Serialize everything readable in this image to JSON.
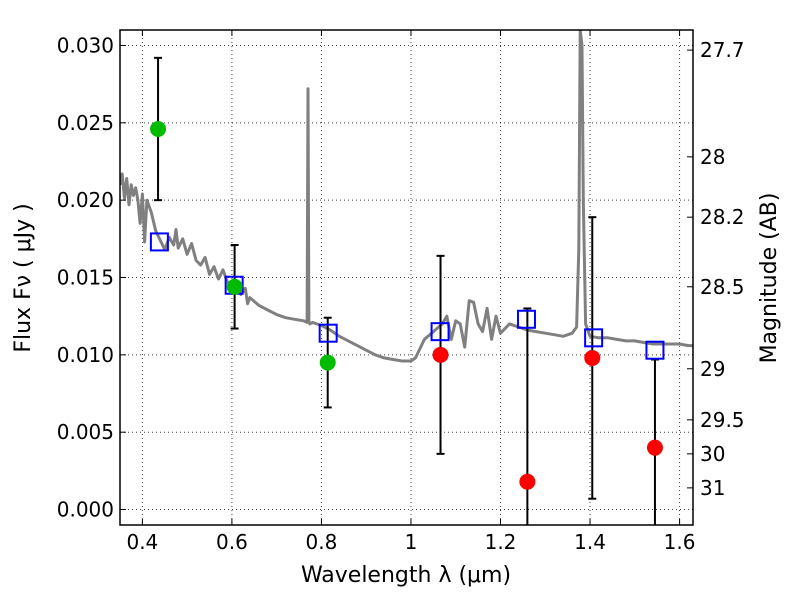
{
  "chart_data": {
    "type": "scatter",
    "xlabel": "Wavelength  λ (μm)",
    "ylabel": "Flux  Fν  ( μJy )",
    "ylabel_right": "Magnitude (AB)",
    "xlim": [
      0.35,
      1.63
    ],
    "ylim": [
      -0.001,
      0.031
    ],
    "grid": true,
    "x_ticks": [
      {
        "value": 0.4,
        "label": "0.4"
      },
      {
        "value": 0.6,
        "label": "0.6"
      },
      {
        "value": 0.8,
        "label": "0.8"
      },
      {
        "value": 1.0,
        "label": "1"
      },
      {
        "value": 1.2,
        "label": "1.2"
      },
      {
        "value": 1.4,
        "label": "1.4"
      },
      {
        "value": 1.6,
        "label": "1.6"
      }
    ],
    "y_ticks": [
      {
        "value": 0.0,
        "label": "0.000"
      },
      {
        "value": 0.005,
        "label": "0.005"
      },
      {
        "value": 0.01,
        "label": "0.010"
      },
      {
        "value": 0.015,
        "label": "0.015"
      },
      {
        "value": 0.02,
        "label": "0.020"
      },
      {
        "value": 0.025,
        "label": "0.025"
      },
      {
        "value": 0.03,
        "label": "0.030"
      }
    ],
    "mag_ticks": [
      {
        "flux": 0.0297,
        "label": "27.7"
      },
      {
        "flux": 0.0228,
        "label": "28"
      },
      {
        "flux": 0.0189,
        "label": "28.2"
      },
      {
        "flux": 0.0144,
        "label": "28.5"
      },
      {
        "flux": 0.0091,
        "label": "29"
      },
      {
        "flux": 0.0058,
        "label": "29.5"
      },
      {
        "flux": 0.0036,
        "label": "30"
      },
      {
        "flux": 0.0014,
        "label": "31"
      }
    ],
    "colors": {
      "spectrum": "#808080",
      "model": "#0000ff",
      "detection": "#00bb00",
      "nondetection": "#ff0000",
      "errorbar": "#000000"
    },
    "spectrum": {
      "x": [
        0.35,
        0.355,
        0.36,
        0.365,
        0.37,
        0.375,
        0.38,
        0.385,
        0.39,
        0.395,
        0.4,
        0.405,
        0.41,
        0.415,
        0.42,
        0.43,
        0.44,
        0.45,
        0.46,
        0.47,
        0.475,
        0.48,
        0.49,
        0.5,
        0.51,
        0.52,
        0.53,
        0.54,
        0.55,
        0.56,
        0.57,
        0.58,
        0.59,
        0.6,
        0.61,
        0.62,
        0.63,
        0.635,
        0.64,
        0.66,
        0.68,
        0.7,
        0.72,
        0.74,
        0.76,
        0.768,
        0.77,
        0.772,
        0.774,
        0.78,
        0.8,
        0.82,
        0.84,
        0.86,
        0.88,
        0.9,
        0.92,
        0.94,
        0.96,
        0.98,
        1.0,
        1.01,
        1.03,
        1.05,
        1.07,
        1.08,
        1.09,
        1.1,
        1.11,
        1.12,
        1.13,
        1.14,
        1.15,
        1.16,
        1.17,
        1.18,
        1.19,
        1.2,
        1.22,
        1.24,
        1.26,
        1.28,
        1.3,
        1.32,
        1.34,
        1.36,
        1.37,
        1.375,
        1.378,
        1.382,
        1.385,
        1.39,
        1.4,
        1.42,
        1.44,
        1.46,
        1.48,
        1.5,
        1.52,
        1.54,
        1.56,
        1.58,
        1.6,
        1.62,
        1.63
      ],
      "y": [
        0.021,
        0.0217,
        0.0201,
        0.0214,
        0.0197,
        0.021,
        0.0203,
        0.0208,
        0.02,
        0.0185,
        0.0204,
        0.0173,
        0.02,
        0.0196,
        0.0192,
        0.018,
        0.0174,
        0.0168,
        0.0176,
        0.0171,
        0.0181,
        0.0169,
        0.0175,
        0.0165,
        0.0172,
        0.0161,
        0.0158,
        0.0163,
        0.0152,
        0.0157,
        0.0149,
        0.0155,
        0.0147,
        0.0146,
        0.0142,
        0.0139,
        0.0143,
        0.0133,
        0.0137,
        0.0132,
        0.0129,
        0.0126,
        0.0124,
        0.0123,
        0.0122,
        0.0121,
        0.0272,
        0.0121,
        0.012,
        0.0121,
        0.0119,
        0.0116,
        0.0112,
        0.0109,
        0.0106,
        0.0103,
        0.01,
        0.0098,
        0.0097,
        0.0096,
        0.0096,
        0.0098,
        0.011,
        0.0115,
        0.012,
        0.0125,
        0.011,
        0.0122,
        0.012,
        0.0105,
        0.0135,
        0.0134,
        0.012,
        0.0115,
        0.013,
        0.011,
        0.0125,
        0.0114,
        0.012,
        0.0118,
        0.0116,
        0.0115,
        0.0114,
        0.0113,
        0.0112,
        0.0114,
        0.0118,
        0.0168,
        0.031,
        0.03,
        0.02,
        0.012,
        0.0112,
        0.0111,
        0.0111,
        0.011,
        0.0109,
        0.0109,
        0.0108,
        0.0107,
        0.0107,
        0.0107,
        0.0107,
        0.0106,
        0.0106
      ]
    },
    "model_points": {
      "x": [
        0.438,
        0.605,
        0.815,
        1.065,
        1.258,
        1.408,
        1.545
      ],
      "y": [
        0.0173,
        0.0145,
        0.0114,
        0.0115,
        0.0123,
        0.0111,
        0.0103
      ]
    },
    "observed_points": [
      {
        "x": 0.435,
        "y": 0.0246,
        "err_low": 0.02,
        "err_high": 0.0292,
        "color": "detection"
      },
      {
        "x": 0.606,
        "y": 0.0144,
        "err_low": 0.0117,
        "err_high": 0.0171,
        "color": "detection"
      },
      {
        "x": 0.814,
        "y": 0.0095,
        "err_low": 0.0066,
        "err_high": 0.0124,
        "color": "detection"
      },
      {
        "x": 1.066,
        "y": 0.01,
        "err_low": 0.0036,
        "err_high": 0.0164,
        "color": "nondetection"
      },
      {
        "x": 1.26,
        "y": 0.0018,
        "err_low": -0.0012,
        "err_high": 0.013,
        "color": "nondetection"
      },
      {
        "x": 1.405,
        "y": 0.0098,
        "err_low": 0.0007,
        "err_high": 0.0189,
        "color": "nondetection"
      },
      {
        "x": 1.545,
        "y": 0.004,
        "err_low": -0.0012,
        "err_high": 0.0097,
        "color": "nondetection"
      }
    ]
  }
}
